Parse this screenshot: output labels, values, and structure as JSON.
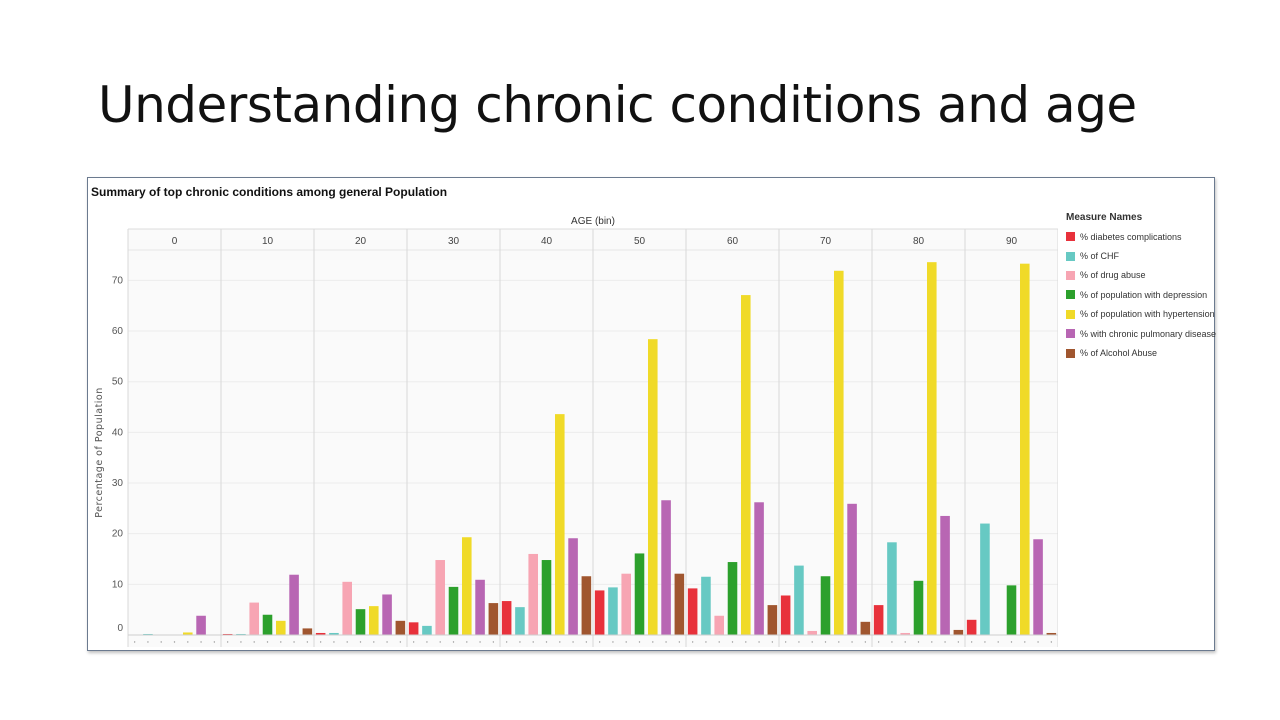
{
  "slide": {
    "title": "Understanding chronic conditions and age"
  },
  "chart_data": {
    "type": "bar",
    "title": "Summary of top chronic conditions among general Population",
    "column_header": "AGE (bin)",
    "ylabel": "Percentage of Population",
    "ylim": [
      0,
      76
    ],
    "yticks": [
      0,
      10,
      20,
      30,
      40,
      50,
      60,
      70
    ],
    "categories": [
      "0",
      "10",
      "20",
      "30",
      "40",
      "50",
      "60",
      "70",
      "80",
      "90"
    ],
    "legend_title": "Measure Names",
    "legend_position": "right",
    "series": [
      {
        "name": "% diabetes complications",
        "color": "#e8313b",
        "values": [
          0,
          0.2,
          0.4,
          2.5,
          6.7,
          8.8,
          9.2,
          7.8,
          5.9,
          3.0
        ]
      },
      {
        "name": "% of CHF",
        "color": "#67c9c3",
        "values": [
          0.2,
          0.2,
          0.4,
          1.8,
          5.5,
          9.4,
          11.5,
          13.7,
          18.3,
          22.0
        ]
      },
      {
        "name": "% of drug abuse",
        "color": "#f7a5b3",
        "values": [
          0,
          6.4,
          10.5,
          14.8,
          16.0,
          12.1,
          3.8,
          0.8,
          0.4,
          0.1
        ]
      },
      {
        "name": "% of population with depression",
        "color": "#2ca02c",
        "values": [
          0,
          4.0,
          5.1,
          9.5,
          14.8,
          16.1,
          14.4,
          11.6,
          10.7,
          9.8
        ]
      },
      {
        "name": "% of population with hypertension",
        "color": "#f0da28",
        "values": [
          0.5,
          2.8,
          5.7,
          19.3,
          43.6,
          58.4,
          67.1,
          71.9,
          73.6,
          73.3
        ]
      },
      {
        "name": "% with chronic pulmonary disease",
        "color": "#b866b3",
        "values": [
          3.8,
          11.9,
          8.0,
          10.9,
          19.1,
          26.6,
          26.2,
          25.9,
          23.5,
          18.9
        ]
      },
      {
        "name": "% of Alcohol Abuse",
        "color": "#a0562f",
        "values": [
          0,
          1.3,
          2.8,
          6.3,
          11.6,
          12.1,
          5.9,
          2.6,
          1.0,
          0.4
        ]
      }
    ]
  }
}
